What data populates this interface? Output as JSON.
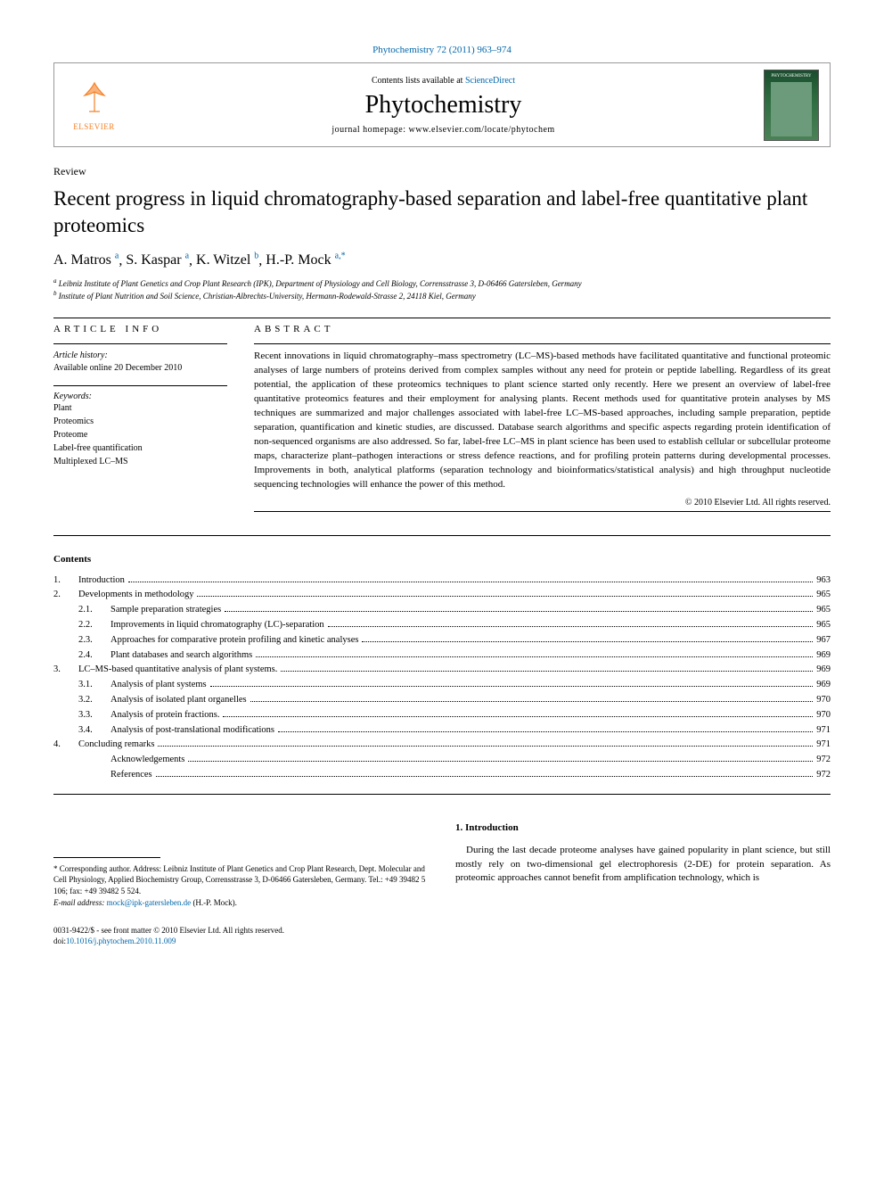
{
  "journal_ref": {
    "name": "Phytochemistry",
    "vol": "72 (2011) 963–974"
  },
  "header": {
    "contents_prefix": "Contents lists available at ",
    "contents_link": "ScienceDirect",
    "journal_name": "Phytochemistry",
    "homepage_prefix": "journal homepage: ",
    "homepage_url": "www.elsevier.com/locate/phytochem",
    "elsevier": "ELSEVIER",
    "cover_title": "PHYTOCHEMISTRY"
  },
  "article": {
    "type": "Review",
    "title": "Recent progress in liquid chromatography-based separation and label-free quantitative plant proteomics",
    "authors_html": [
      {
        "name": "A. Matros",
        "aff": "a"
      },
      {
        "name": "S. Kaspar",
        "aff": "a"
      },
      {
        "name": "K. Witzel",
        "aff": "b"
      },
      {
        "name": "H.-P. Mock",
        "aff": "a,",
        "corr": "*"
      }
    ],
    "affiliations": [
      {
        "sup": "a",
        "text": "Leibniz Institute of Plant Genetics and Crop Plant Research (IPK), Department of Physiology and Cell Biology, Corrensstrasse 3, D-06466 Gatersleben, Germany"
      },
      {
        "sup": "b",
        "text": "Institute of Plant Nutrition and Soil Science, Christian-Albrechts-University, Hermann-Rodewald-Strasse 2, 24118 Kiel, Germany"
      }
    ]
  },
  "info": {
    "label": "ARTICLE INFO",
    "history_heading": "Article history:",
    "history_line": "Available online 20 December 2010",
    "keywords_heading": "Keywords:",
    "keywords": [
      "Plant",
      "Proteomics",
      "Proteome",
      "Label-free quantification",
      "Multiplexed LC–MS"
    ]
  },
  "abstract": {
    "label": "ABSTRACT",
    "text": "Recent innovations in liquid chromatography–mass spectrometry (LC–MS)-based methods have facilitated quantitative and functional proteomic analyses of large numbers of proteins derived from complex samples without any need for protein or peptide labelling. Regardless of its great potential, the application of these proteomics techniques to plant science started only recently. Here we present an overview of label-free quantitative proteomics features and their employment for analysing plants. Recent methods used for quantitative protein analyses by MS techniques are summarized and major challenges associated with label-free LC–MS-based approaches, including sample preparation, peptide separation, quantification and kinetic studies, are discussed. Database search algorithms and specific aspects regarding protein identification of non-sequenced organisms are also addressed. So far, label-free LC–MS in plant science has been used to establish cellular or subcellular proteome maps, characterize plant–pathogen interactions or stress defence reactions, and for profiling protein patterns during developmental processes. Improvements in both, analytical platforms (separation technology and bioinformatics/statistical analysis) and high throughput nucleotide sequencing technologies will enhance the power of this method.",
    "copyright": "© 2010 Elsevier Ltd. All rights reserved."
  },
  "contents": {
    "heading": "Contents",
    "items": [
      {
        "num": "1.",
        "title": "Introduction",
        "page": "963"
      },
      {
        "num": "2.",
        "title": "Developments in methodology",
        "page": "965"
      },
      {
        "sub": "2.1.",
        "title": "Sample preparation strategies",
        "page": "965"
      },
      {
        "sub": "2.2.",
        "title": "Improvements in liquid chromatography (LC)-separation",
        "page": "965"
      },
      {
        "sub": "2.3.",
        "title": "Approaches for comparative protein profiling and kinetic analyses",
        "page": "967"
      },
      {
        "sub": "2.4.",
        "title": "Plant databases and search algorithms",
        "page": "969"
      },
      {
        "num": "3.",
        "title": "LC–MS-based quantitative analysis of plant systems.",
        "page": "969"
      },
      {
        "sub": "3.1.",
        "title": "Analysis of plant systems",
        "page": "969"
      },
      {
        "sub": "3.2.",
        "title": "Analysis of isolated plant organelles",
        "page": "970"
      },
      {
        "sub": "3.3.",
        "title": "Analysis of protein fractions.",
        "page": "970"
      },
      {
        "sub": "3.4.",
        "title": "Analysis of post-translational modifications",
        "page": "971"
      },
      {
        "num": "4.",
        "title": "Concluding remarks",
        "page": "971"
      },
      {
        "none": true,
        "title": "Acknowledgements",
        "page": "972"
      },
      {
        "none": true,
        "title": "References",
        "page": "972"
      }
    ]
  },
  "footnote": {
    "star": "*",
    "text": " Corresponding author. Address: Leibniz Institute of Plant Genetics and Crop Plant Research, Dept. Molecular and Cell Physiology, Applied Biochemistry Group, Corrensstrasse 3, D-06466 Gatersleben, Germany. Tel.: +49 39482 5 106; fax: +49 39482 5 524.",
    "email_label": "E-mail address: ",
    "email": "mock@ipk-gatersleben.de",
    "email_suffix": " (H.-P. Mock)."
  },
  "intro": {
    "heading": "1. Introduction",
    "para": "During the last decade proteome analyses have gained popularity in plant science, but still mostly rely on two-dimensional gel electrophoresis (2-DE) for protein separation. As proteomic approaches cannot benefit from amplification technology, which is"
  },
  "footer": {
    "line1": "0031-9422/$ - see front matter © 2010 Elsevier Ltd. All rights reserved.",
    "doi_prefix": "doi:",
    "doi": "10.1016/j.phytochem.2010.11.009"
  },
  "colors": {
    "link": "#0066aa",
    "elsevier_orange": "#f58025",
    "cover_green": "#1a4d2e"
  }
}
